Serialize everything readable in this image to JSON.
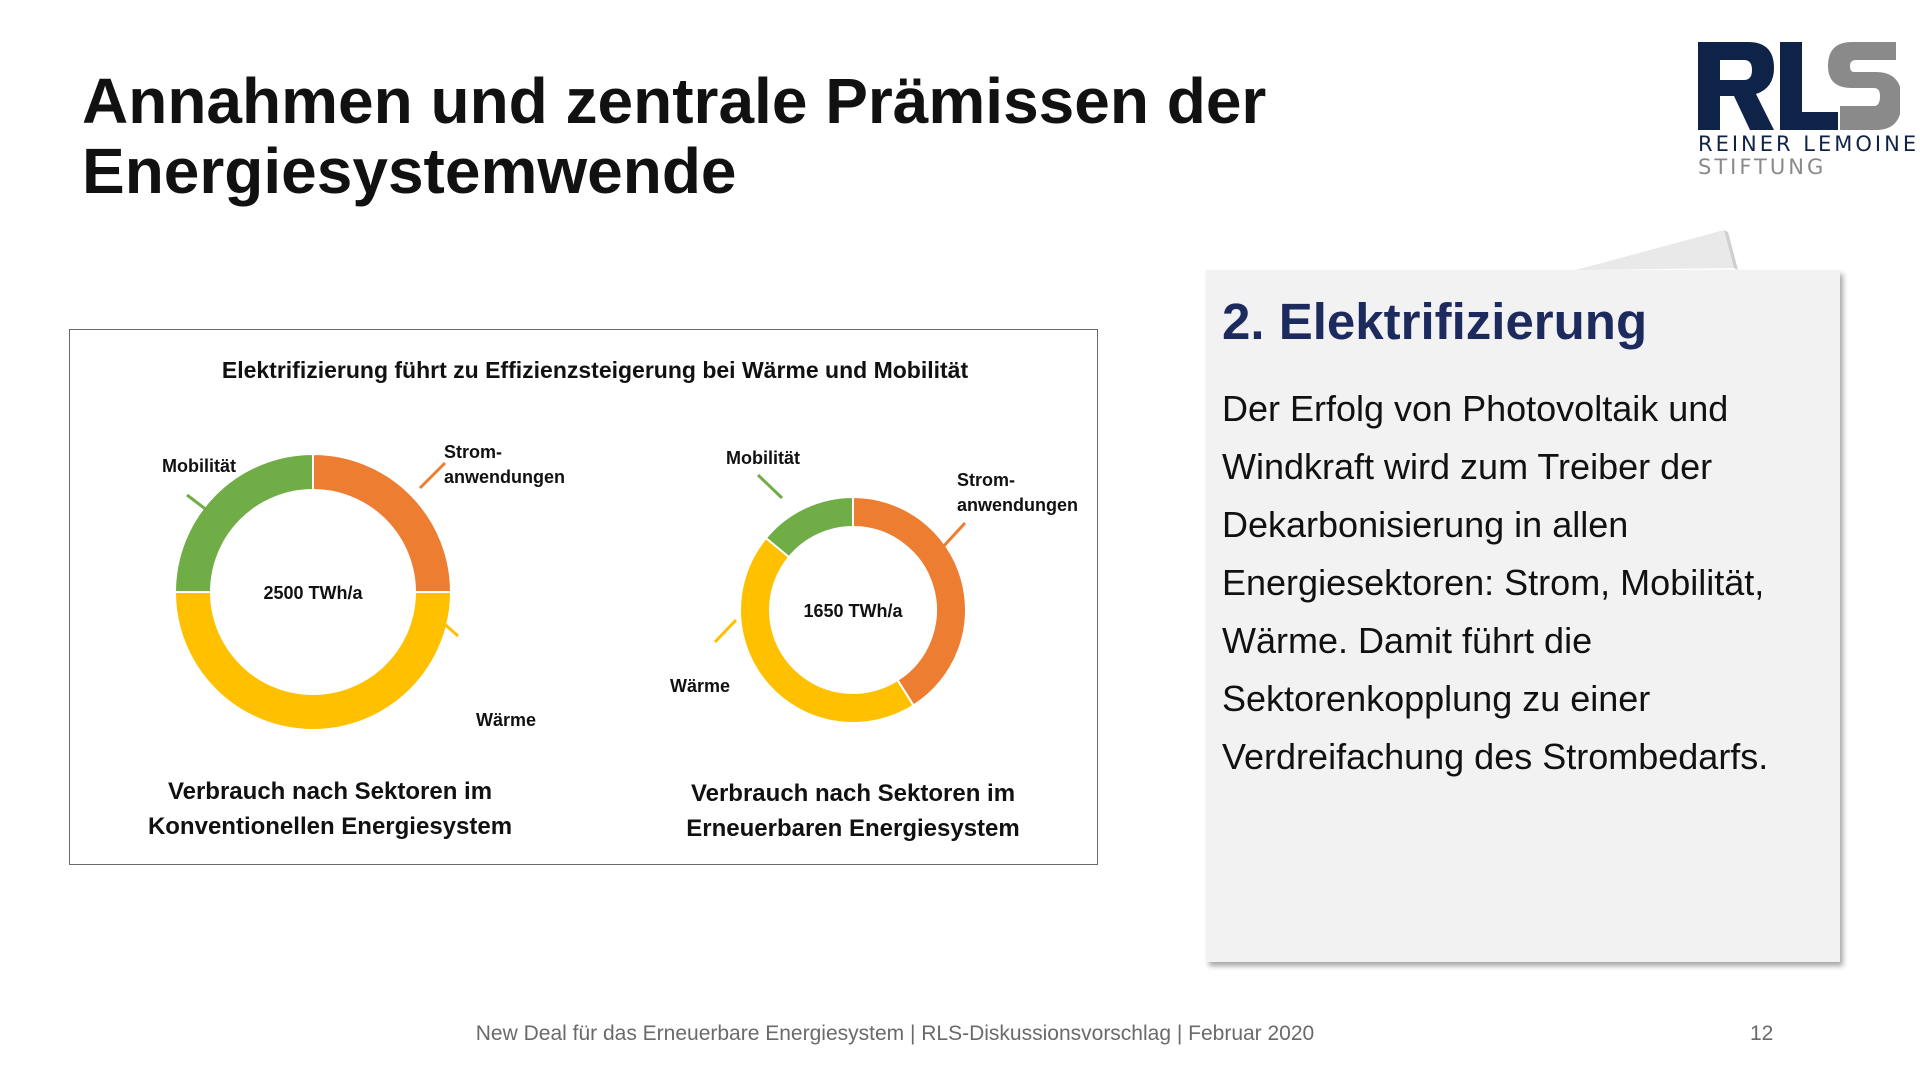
{
  "slide": {
    "title_line1": "Annahmen und zentrale Prämissen der",
    "title_line2": "Energiesystemwende",
    "logo": {
      "letters": "RLS",
      "tagline1": "REINER LEMOINE",
      "tagline2": "STIFTUNG"
    }
  },
  "callout": {
    "heading": "2. Elektrifizierung",
    "text": "Der Erfolg von Photovoltaik und Windkraft wird zum Treiber der Dekarbonisierung in allen Energiesektoren: Strom, Mobilität, Wärme. Damit führt die Sektorenkopplung zu einer Verdreifachung des Strombedarfs."
  },
  "footer": {
    "text": "New Deal für das Erneuerbare Energiesystem | RLS-Diskussionsvorschlag | Februar 2020",
    "page_number": "12"
  },
  "colors": {
    "Strom": "#ed7d31",
    "Waerme": "#ffc000",
    "Mobilitaet": "#70ad47",
    "title": "#111111",
    "heading": "#1c2a5e",
    "logo_dark": "#0f2349",
    "logo_grey": "#8a8a8a"
  },
  "chart_data": {
    "type": "pie",
    "title": "Elektrifizierung führt zu Effizienzsteigerung bei Wärme und Mobilität",
    "charts": [
      {
        "total_label": "2500 TWh/a",
        "caption_line1": "Verbrauch nach Sektoren im",
        "caption_line2": "Konventionellen Energiesystem",
        "slices": [
          {
            "label": "Strom-anwendungen",
            "label_line1": "Strom-",
            "label_line2": "anwendungen",
            "share": 0.25,
            "value": 625,
            "color": "#ed7d31"
          },
          {
            "label": "Wärme",
            "label_line1": "Wärme",
            "label_line2": "",
            "share": 0.5,
            "value": 1250,
            "color": "#ffc000"
          },
          {
            "label": "Mobilität",
            "label_line1": "Mobilität",
            "label_line2": "",
            "share": 0.25,
            "value": 625,
            "color": "#70ad47"
          }
        ]
      },
      {
        "total_label": "1650 TWh/a",
        "caption_line1": "Verbrauch nach Sektoren im",
        "caption_line2": "Erneuerbaren Energiesystem",
        "slices": [
          {
            "label": "Strom-anwendungen",
            "label_line1": "Strom-",
            "label_line2": "anwendungen",
            "share": 0.41,
            "value": 676,
            "color": "#ed7d31"
          },
          {
            "label": "Wärme",
            "label_line1": "Wärme",
            "label_line2": "",
            "share": 0.45,
            "value": 743,
            "color": "#ffc000"
          },
          {
            "label": "Mobilität",
            "label_line1": "Mobilität",
            "label_line2": "",
            "share": 0.14,
            "value": 231,
            "color": "#70ad47"
          }
        ]
      }
    ]
  }
}
